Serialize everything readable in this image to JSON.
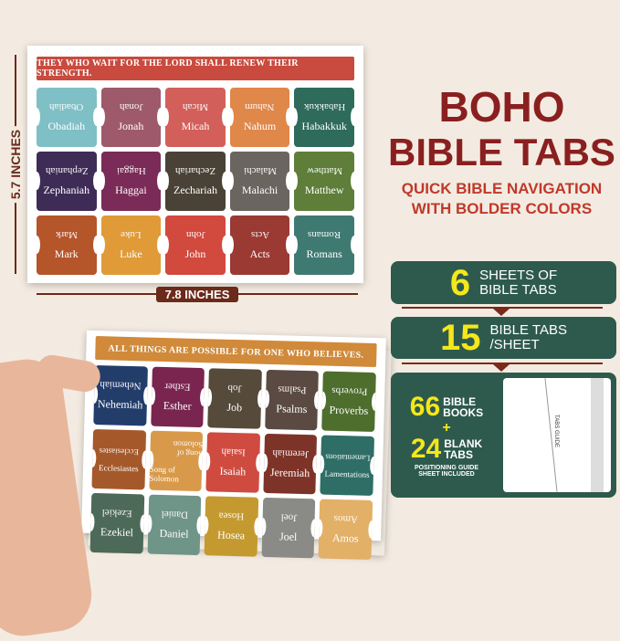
{
  "top_sheet": {
    "banner": "THEY WHO WAIT FOR THE LORD SHALL RENEW THEIR STRENGTH.",
    "banner_color": "#c94a3e",
    "tabs": [
      {
        "label": "Obadiah",
        "color": "#7fbfc6"
      },
      {
        "label": "Jonah",
        "color": "#9e5a6a"
      },
      {
        "label": "Micah",
        "color": "#d35f5a"
      },
      {
        "label": "Nahum",
        "color": "#e0874a"
      },
      {
        "label": "Habakkuk",
        "color": "#2e6b5a"
      },
      {
        "label": "Zephaniah",
        "color": "#3e2c56"
      },
      {
        "label": "Haggai",
        "color": "#7a2b57"
      },
      {
        "label": "Zechariah",
        "color": "#4a4236"
      },
      {
        "label": "Malachi",
        "color": "#6b6560"
      },
      {
        "label": "Matthew",
        "color": "#5e7e3a"
      },
      {
        "label": "Mark",
        "color": "#b5552a"
      },
      {
        "label": "Luke",
        "color": "#e09a38"
      },
      {
        "label": "John",
        "color": "#d2493e"
      },
      {
        "label": "Acts",
        "color": "#9a3a33"
      },
      {
        "label": "Romans",
        "color": "#3f7a72"
      }
    ]
  },
  "bottom_sheet": {
    "banner": "ALL THINGS ARE POSSIBLE FOR ONE WHO BELIEVES.",
    "banner_color": "#d08a3a",
    "tabs": [
      {
        "label": "Nehemiah",
        "color": "#233d6b"
      },
      {
        "label": "Esther",
        "color": "#7a2450"
      },
      {
        "label": "Job",
        "color": "#564a3a"
      },
      {
        "label": "Psalms",
        "color": "#5a4a42"
      },
      {
        "label": "Proverbs",
        "color": "#4e6e2e"
      },
      {
        "label": "Ecclesiastes",
        "color": "#a5592a"
      },
      {
        "label": "Song of Solomon",
        "color": "#d89a4a"
      },
      {
        "label": "Isaiah",
        "color": "#cf4b40"
      },
      {
        "label": "Jeremiah",
        "color": "#7e3328"
      },
      {
        "label": "Lamentations",
        "color": "#2e6e66"
      },
      {
        "label": "Ezekiel",
        "color": "#4d6a58"
      },
      {
        "label": "Daniel",
        "color": "#6f9488"
      },
      {
        "label": "Hosea",
        "color": "#c49a30"
      },
      {
        "label": "Joel",
        "color": "#8a8a86"
      },
      {
        "label": "Amos",
        "color": "#e3b067"
      }
    ]
  },
  "dimensions": {
    "height": "5.7 INCHES",
    "width": "7.8 INCHES"
  },
  "heading": {
    "line1": "BOHO",
    "line2": "BIBLE TABS",
    "sub1": "QUICK BIBLE NAVIGATION",
    "sub2": "WITH BOLDER COLORS"
  },
  "features": {
    "sheets": {
      "number": "6",
      "line1": "SHEETS OF",
      "line2": "BIBLE TABS"
    },
    "per_sheet": {
      "number": "15",
      "line1": "BIBLE TABS",
      "line2": "/SHEET"
    },
    "books": {
      "number": "66",
      "line1": "BIBLE",
      "line2": "BOOKS",
      "plus": "+"
    },
    "blank": {
      "number": "24",
      "line1": "BLANK",
      "line2": "TABS"
    },
    "guide_note1": "POSITIONING GUIDE",
    "guide_note2": "SHEET INCLUDED",
    "guide_label": "TABS GUIDE"
  }
}
